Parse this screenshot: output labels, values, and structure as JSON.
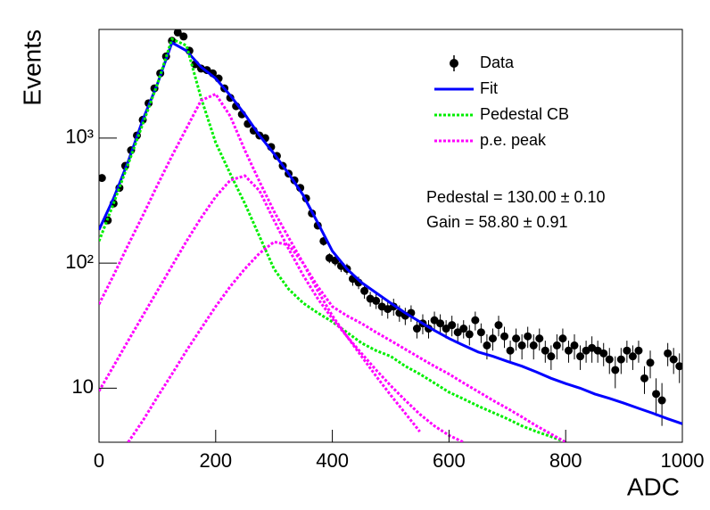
{
  "chart_data": {
    "type": "line",
    "x_label": "ADC",
    "y_label": "Events",
    "xlim": [
      0,
      1000
    ],
    "ylim": [
      3.7,
      7400
    ],
    "xticks": [
      0,
      200,
      400,
      600,
      800,
      1000
    ],
    "yticks": [
      10,
      {
        "value": 100,
        "label": "10²"
      },
      {
        "value": 1000,
        "label": "10³"
      }
    ],
    "log_y": true,
    "legend": "top right",
    "annotations": [
      "Pedestal = 130.00 ± 0.10",
      "Gain = 58.80 ± 0.91"
    ],
    "curve_x": [
      0,
      25,
      50,
      75,
      100,
      125,
      150,
      175,
      200,
      225,
      250,
      275,
      300,
      325,
      350,
      375,
      400,
      425,
      450,
      475,
      500,
      525,
      550,
      575,
      600,
      625,
      650,
      675,
      700,
      725,
      750,
      775,
      800,
      825,
      850,
      875,
      900,
      925,
      950,
      975,
      1000
    ],
    "series": [
      {
        "name": "Data",
        "color": "#000000",
        "style": "points",
        "x": [
          5,
          15,
          25,
          35,
          45,
          55,
          65,
          75,
          85,
          95,
          105,
          115,
          125,
          135,
          145,
          155,
          165,
          175,
          185,
          195,
          205,
          215,
          225,
          235,
          245,
          255,
          265,
          275,
          285,
          295,
          305,
          315,
          325,
          335,
          345,
          355,
          365,
          375,
          385,
          395,
          405,
          415,
          425,
          435,
          445,
          455,
          465,
          475,
          485,
          495,
          505,
          515,
          525,
          535,
          545,
          555,
          565,
          575,
          585,
          595,
          605,
          615,
          625,
          635,
          645,
          655,
          665,
          675,
          685,
          695,
          705,
          715,
          725,
          735,
          745,
          755,
          765,
          775,
          785,
          795,
          805,
          815,
          825,
          835,
          845,
          855,
          865,
          875,
          885,
          895,
          905,
          915,
          925,
          935,
          945,
          955,
          965,
          975,
          985,
          995
        ],
        "values": [
          480,
          220,
          300,
          400,
          600,
          800,
          1050,
          1400,
          1900,
          2500,
          3300,
          4500,
          6000,
          7000,
          6500,
          5000,
          3900,
          3600,
          3500,
          3300,
          3000,
          2500,
          2100,
          1800,
          1550,
          1300,
          1150,
          1050,
          1000,
          850,
          720,
          600,
          520,
          460,
          400,
          330,
          250,
          200,
          150,
          110,
          105,
          95,
          90,
          75,
          70,
          60,
          52,
          50,
          45,
          43,
          45,
          40,
          38,
          40,
          30,
          33,
          30,
          35,
          33,
          30,
          32,
          28,
          30,
          27,
          35,
          28,
          22,
          25,
          32,
          26,
          20,
          25,
          22,
          26,
          22,
          25,
          20,
          18,
          22,
          25,
          20,
          22,
          18,
          20,
          21,
          20,
          19,
          17,
          14,
          17,
          20,
          18,
          20,
          12,
          16,
          9,
          8,
          19,
          17,
          15
        ],
        "errors": [
          22,
          15,
          17,
          20,
          24,
          28,
          32,
          37,
          44,
          50,
          57,
          67,
          77,
          84,
          81,
          71,
          62,
          60,
          59,
          57,
          55,
          50,
          46,
          42,
          39,
          36,
          34,
          32,
          32,
          29,
          27,
          24,
          23,
          21,
          20,
          18,
          16,
          14,
          12,
          10,
          10,
          10,
          9,
          9,
          8,
          8,
          7,
          7,
          7,
          7,
          7,
          6,
          6,
          6,
          5,
          6,
          5,
          6,
          6,
          5,
          6,
          5,
          5,
          5,
          6,
          5,
          5,
          5,
          6,
          5,
          4,
          5,
          5,
          5,
          5,
          5,
          4,
          4,
          5,
          5,
          4,
          5,
          4,
          4,
          5,
          4,
          4,
          4,
          4,
          4,
          4,
          4,
          4,
          3,
          4,
          3,
          3,
          4,
          4,
          4
        ]
      },
      {
        "name": "Fit",
        "color": "#0000ff",
        "style": "solid",
        "values": [
          185,
          330,
          650,
          1400,
          2700,
          5800,
          5000,
          3700,
          3000,
          2200,
          1550,
          1050,
          750,
          520,
          350,
          210,
          125,
          90,
          70,
          58,
          48,
          40,
          34,
          29,
          25,
          22,
          19.5,
          18,
          16.4,
          15,
          13.5,
          12,
          10.9,
          10,
          9,
          8.3,
          7.6,
          6.9,
          6.3,
          5.7,
          5.2
        ]
      },
      {
        "name": "Pedestal CB",
        "color": "#00ee00",
        "style": "dotted",
        "values": [
          150,
          300,
          620,
          1300,
          2700,
          6200,
          5500,
          2100,
          920,
          520,
          300,
          164,
          90,
          62,
          48,
          40,
          34,
          28,
          23,
          20,
          18,
          15,
          13,
          11,
          9.3,
          8.2,
          7.2,
          6.4,
          5.7,
          5,
          4.5,
          4.1,
          3.7,
          null,
          null,
          null,
          null,
          null,
          null,
          null,
          null
        ]
      },
      {
        "name": "p.e. peak",
        "color": "#ff00ff",
        "style": "dotted",
        "curves": [
          [
            47,
            80,
            140,
            240,
            420,
            720,
            1200,
            2000,
            2250,
            1500,
            800,
            450,
            260,
            160,
            100,
            65,
            45,
            38,
            33,
            28,
            24,
            20.5,
            17.5,
            15,
            13,
            11,
            9.4,
            8,
            6.9,
            5.9,
            5,
            4.3,
            3.7,
            null,
            null,
            null,
            null,
            null,
            null,
            null,
            null
          ],
          [
            9.5,
            15,
            24,
            38,
            60,
            95,
            150,
            230,
            340,
            460,
            500,
            380,
            220,
            130,
            80,
            52,
            36,
            26,
            19,
            14,
            10.5,
            8,
            6.2,
            5,
            4.2,
            3.7,
            null,
            null,
            null,
            null,
            null,
            null,
            null,
            null,
            null,
            null,
            null,
            null,
            null,
            null,
            null
          ],
          [
            null,
            null,
            3.7,
            5.5,
            8.5,
            13,
            20,
            30,
            45,
            65,
            90,
            120,
            148,
            140,
            100,
            60,
            38,
            26,
            18,
            12.5,
            8.8,
            6.3,
            4.5,
            null,
            null,
            null,
            null,
            null,
            null,
            null,
            null,
            null,
            null,
            null,
            null,
            null,
            null,
            null,
            null,
            null,
            null
          ]
        ]
      }
    ]
  }
}
